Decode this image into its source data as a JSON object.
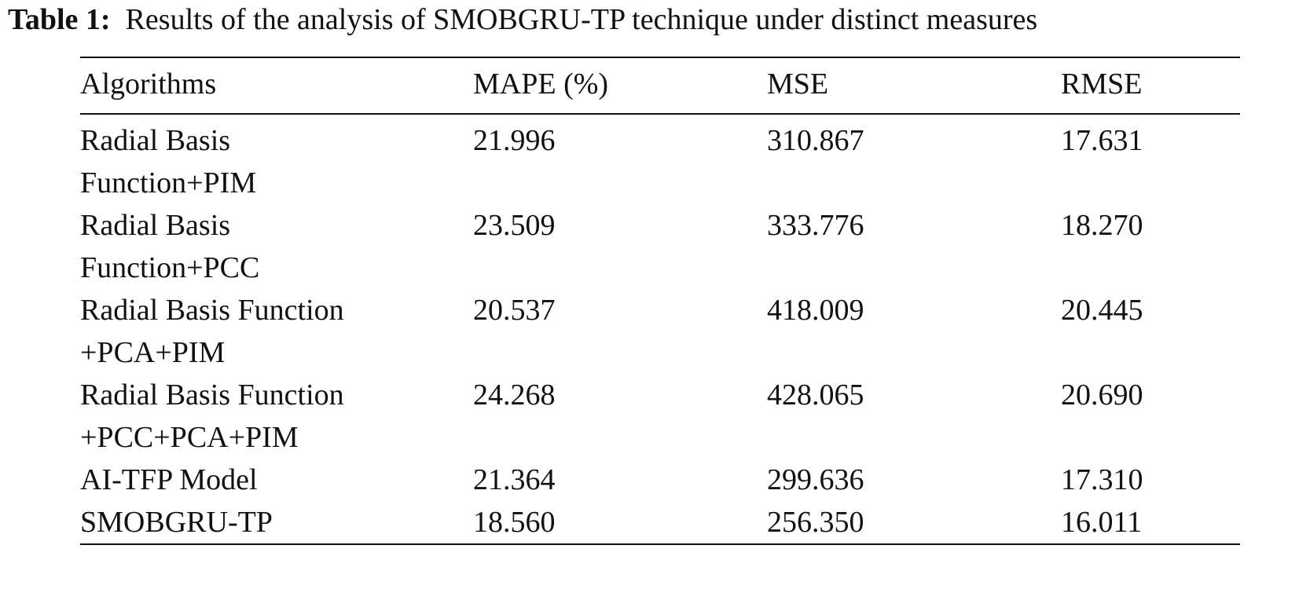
{
  "caption": {
    "label": "Table 1:",
    "text": "Results of the analysis of SMOBGRU-TP technique under distinct measures"
  },
  "table": {
    "headers": [
      "Algorithms",
      "MAPE (%)",
      "MSE",
      "RMSE"
    ],
    "rows": [
      {
        "algorithm_line1": "Radial Basis",
        "algorithm_line2": "Function+PIM",
        "mape": "21.996",
        "mse": "310.867",
        "rmse": "17.631"
      },
      {
        "algorithm_line1": "Radial Basis",
        "algorithm_line2": "Function+PCC",
        "mape": "23.509",
        "mse": "333.776",
        "rmse": "18.270"
      },
      {
        "algorithm_line1": "Radial Basis Function",
        "algorithm_line2": "+PCA+PIM",
        "mape": "20.537",
        "mse": "418.009",
        "rmse": "20.445"
      },
      {
        "algorithm_line1": "Radial Basis Function",
        "algorithm_line2": "+PCC+PCA+PIM",
        "mape": "24.268",
        "mse": "428.065",
        "rmse": "20.690"
      },
      {
        "algorithm_line1": "AI-TFP Model",
        "algorithm_line2": "",
        "mape": "21.364",
        "mse": "299.636",
        "rmse": "17.310"
      },
      {
        "algorithm_line1": "SMOBGRU-TP",
        "algorithm_line2": "",
        "mape": "18.560",
        "mse": "256.350",
        "rmse": "16.011"
      }
    ]
  }
}
